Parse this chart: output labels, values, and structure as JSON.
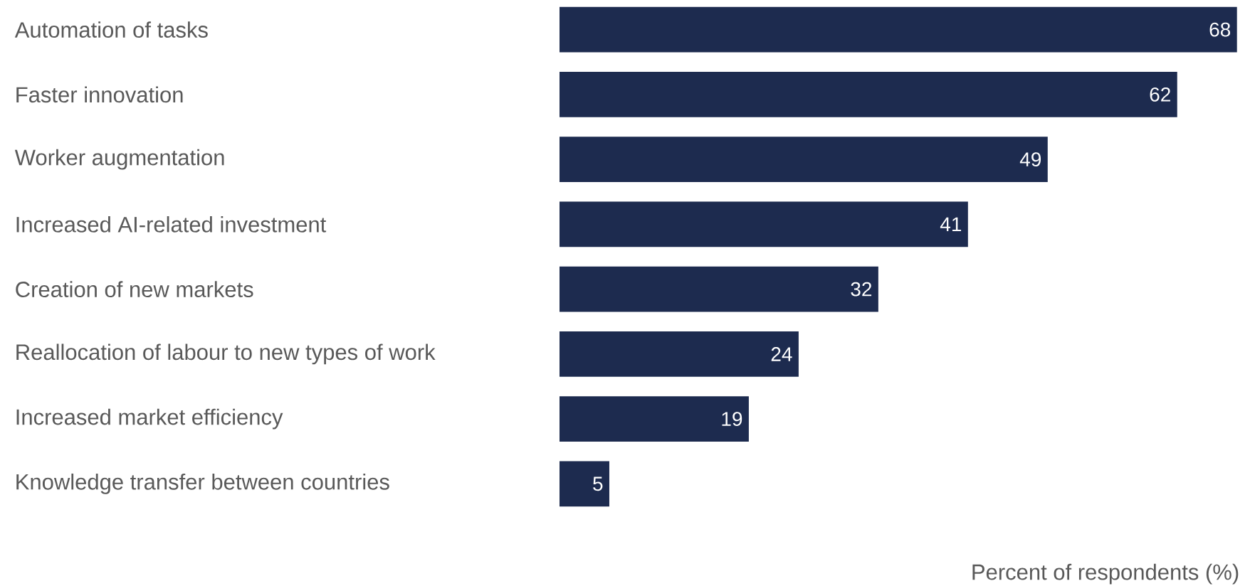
{
  "chart_data": {
    "type": "bar",
    "orientation": "horizontal",
    "xlabel": "Percent of respondents (%)",
    "categories": [
      "Automation of tasks",
      "Faster innovation",
      "Worker augmentation",
      "Increased AI-related investment",
      "Creation of new markets",
      "Reallocation of labour to new types of work",
      "Increased market efficiency",
      "Knowledge transfer between countries"
    ],
    "values": [
      68,
      62,
      49,
      41,
      32,
      24,
      19,
      5
    ],
    "color": "#1d2b4f",
    "data_labels": true,
    "tick_labels": "y"
  }
}
